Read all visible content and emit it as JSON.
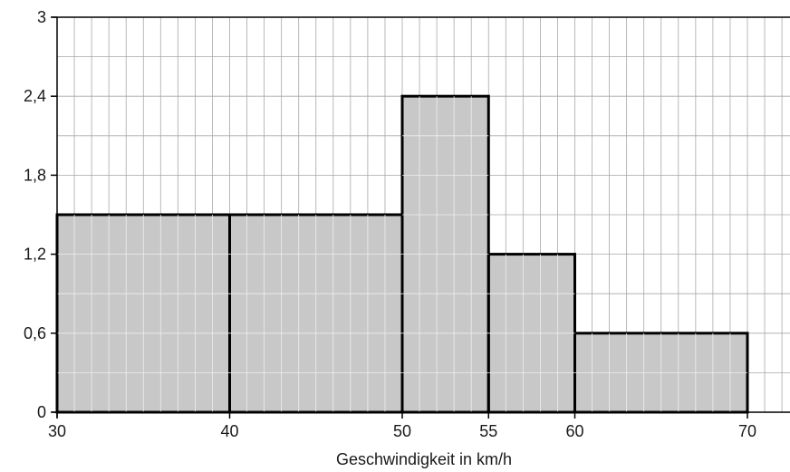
{
  "chart_data": {
    "type": "bar",
    "variant": "histogram",
    "xlabel": "Geschwindigkeit in km/h",
    "ylabel": "",
    "xlim": [
      30,
      72
    ],
    "ylim": [
      0,
      3
    ],
    "grid": true,
    "grid_x_step": 1,
    "grid_y_step": 0.3,
    "x_ticks": [
      30,
      40,
      50,
      55,
      60,
      70
    ],
    "x_tick_labels": [
      "30",
      "40",
      "50",
      "55",
      "60",
      "70"
    ],
    "y_ticks": [
      0,
      0.6,
      1.2,
      1.8,
      2.4,
      3
    ],
    "y_tick_labels": [
      "0",
      "0,6",
      "1,2",
      "1,8",
      "2,4",
      "3"
    ],
    "bins": [
      {
        "from": 30,
        "to": 40,
        "value": 1.5
      },
      {
        "from": 40,
        "to": 50,
        "value": 1.5
      },
      {
        "from": 50,
        "to": 55,
        "value": 2.4
      },
      {
        "from": 55,
        "to": 60,
        "value": 1.2
      },
      {
        "from": 60,
        "to": 70,
        "value": 0.6
      }
    ],
    "colors": {
      "bar_fill": "#c8c8c8",
      "bar_edge": "#000000",
      "grid": "#a8a8a8",
      "axis": "#000000"
    }
  }
}
